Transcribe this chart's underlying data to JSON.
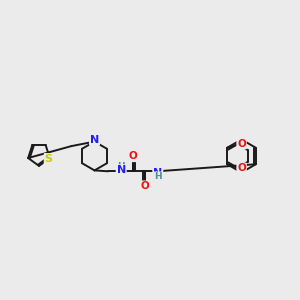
{
  "bg_color": "#ebebeb",
  "bond_color": "#1a1a1a",
  "bond_width": 1.4,
  "N_color": "#2020ee",
  "S_color": "#cccc00",
  "O_color": "#ee1111",
  "NH_color": "#4a9090",
  "font_size": 7.5,
  "fig_width": 3.0,
  "fig_height": 3.0,
  "dpi": 100,
  "xlim": [
    0,
    10
  ],
  "ylim": [
    3.0,
    7.5
  ]
}
